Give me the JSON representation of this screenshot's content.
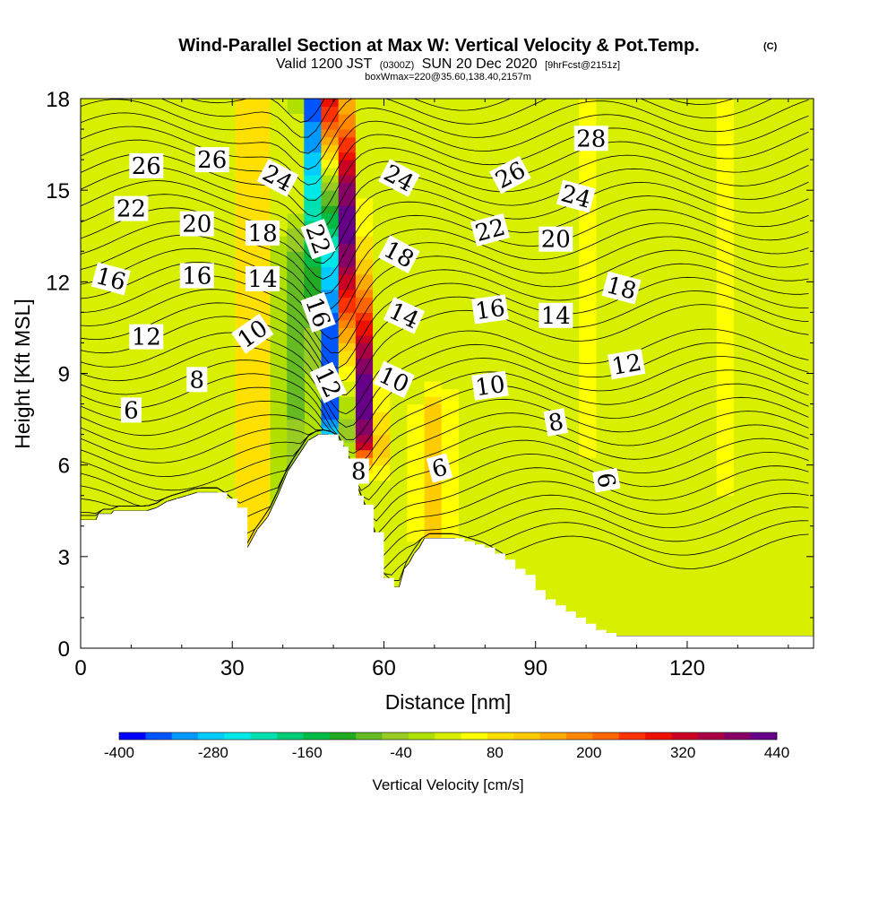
{
  "chart_data": {
    "type": "heatmap",
    "title": "Wind-Parallel Section at Max W: Vertical Velocity & Pot.Temp.",
    "title_mark": "(C)",
    "subtitle": {
      "prefix": "Valid 1200 JST",
      "utc": "(0300Z)",
      "date": "SUN 20 Dec 2020",
      "forecast": "[9hrFcst@2151z]"
    },
    "box_info": "boxWmax=220@35.60,138.40,2157m",
    "xlabel": "Distance [nm]",
    "ylabel": "Height [Kft MSL]",
    "xlim": [
      0,
      145
    ],
    "ylim": [
      0,
      18
    ],
    "x_ticks": [
      0,
      30,
      60,
      90,
      120
    ],
    "y_ticks": [
      0,
      3,
      6,
      9,
      12,
      15,
      18
    ],
    "grid": false,
    "colorbar": {
      "label": "Vertical Velocity [cm/s]",
      "placement": "bottom",
      "tick_labels": [
        "-400",
        "-280",
        "-160",
        "-40",
        "80",
        "200",
        "320",
        "440"
      ],
      "tick_values": [
        -400,
        -280,
        -160,
        -40,
        80,
        200,
        320,
        440
      ],
      "colors": [
        "#0000ff",
        "#0055ff",
        "#0099ff",
        "#00ccff",
        "#00e8e8",
        "#00e0b0",
        "#00cc77",
        "#00bb44",
        "#22aa22",
        "#66bb22",
        "#99cc22",
        "#b0e000",
        "#d8f000",
        "#ffff00",
        "#ffe000",
        "#ffcc00",
        "#ffaa00",
        "#ff8800",
        "#ff6600",
        "#ff3300",
        "#ee1100",
        "#cc0022",
        "#aa0044",
        "#880066",
        "#660088"
      ]
    },
    "terrain_profile_kft": {
      "x": [
        0,
        3,
        3.5,
        6,
        6.5,
        9,
        10,
        11,
        13,
        15,
        17,
        19,
        21,
        23,
        25,
        27,
        29,
        31,
        33,
        35,
        37,
        39,
        41,
        43,
        45,
        47,
        49,
        51,
        52,
        53,
        54,
        55,
        56,
        58,
        60,
        62,
        63,
        64,
        65,
        66,
        67,
        68,
        69,
        70,
        72,
        74,
        76,
        78,
        80,
        82,
        84,
        86,
        88,
        90,
        92,
        94,
        96,
        98,
        100,
        102,
        104,
        106,
        108,
        110,
        112,
        114,
        116,
        118,
        120,
        125,
        130,
        135,
        140,
        145
      ],
      "y": [
        4.2,
        4.2,
        4.4,
        4.4,
        4.5,
        4.5,
        4.5,
        4.5,
        4.5,
        4.6,
        4.8,
        4.9,
        5.0,
        5.1,
        5.1,
        5.1,
        4.9,
        4.6,
        3.3,
        3.9,
        4.3,
        5.0,
        5.8,
        6.3,
        6.8,
        7.0,
        7.0,
        6.8,
        6.6,
        6.0,
        5.5,
        5.0,
        4.7,
        3.8,
        2.3,
        2.0,
        2.0,
        2.6,
        2.8,
        3.1,
        3.3,
        3.6,
        3.6,
        3.6,
        3.6,
        3.6,
        3.5,
        3.4,
        3.3,
        3.1,
        2.9,
        2.6,
        2.4,
        1.9,
        1.6,
        1.4,
        1.2,
        1.0,
        0.8,
        0.6,
        0.5,
        0.4,
        0.4,
        0.4,
        0.4,
        0.4,
        0.4,
        0.4,
        0.4,
        0.4,
        0.4,
        0.4,
        0.4,
        0.4
      ]
    },
    "velocity_features": [
      {
        "x": 49,
        "y_range": [
          7.5,
          18
        ],
        "value": -400
      },
      {
        "x": 55,
        "y_range": [
          7.0,
          18
        ],
        "value": 420
      },
      {
        "x": 34,
        "y_range": [
          4.0,
          18
        ],
        "value": 120
      },
      {
        "x": 42,
        "y_range": [
          4.5,
          13
        ],
        "value": -90
      },
      {
        "x": 70,
        "y_range": [
          4.0,
          7.5
        ],
        "value": 110
      },
      {
        "x": 128,
        "y_range": [
          6.0,
          18
        ],
        "value": 40
      },
      {
        "x": 100,
        "y_range": [
          7.0,
          18
        ],
        "value": 30
      }
    ],
    "contour_labels": [
      {
        "text": "26",
        "x": 13,
        "y": 15.8,
        "angle": 0
      },
      {
        "text": "26",
        "x": 26,
        "y": 16.0,
        "angle": 0
      },
      {
        "text": "24",
        "x": 39,
        "y": 15.4,
        "angle": 28
      },
      {
        "text": "24",
        "x": 63,
        "y": 15.4,
        "angle": 28
      },
      {
        "text": "26",
        "x": 85,
        "y": 15.5,
        "angle": -28
      },
      {
        "text": "28",
        "x": 101,
        "y": 16.7,
        "angle": 0
      },
      {
        "text": "22",
        "x": 10,
        "y": 14.4,
        "angle": 0
      },
      {
        "text": "20",
        "x": 23,
        "y": 13.9,
        "angle": 0
      },
      {
        "text": "18",
        "x": 36,
        "y": 13.6,
        "angle": 0
      },
      {
        "text": "22",
        "x": 47,
        "y": 13.4,
        "angle": 70
      },
      {
        "text": "18",
        "x": 63,
        "y": 12.9,
        "angle": 28
      },
      {
        "text": "22",
        "x": 81,
        "y": 13.7,
        "angle": -15
      },
      {
        "text": "24",
        "x": 98,
        "y": 14.8,
        "angle": 15
      },
      {
        "text": "20",
        "x": 94,
        "y": 13.4,
        "angle": 0
      },
      {
        "text": "16",
        "x": 6,
        "y": 12.1,
        "angle": 15
      },
      {
        "text": "16",
        "x": 23,
        "y": 12.2,
        "angle": 0
      },
      {
        "text": "14",
        "x": 36,
        "y": 12.1,
        "angle": 0
      },
      {
        "text": "16",
        "x": 47,
        "y": 11.0,
        "angle": 70
      },
      {
        "text": "14",
        "x": 64,
        "y": 10.9,
        "angle": 25
      },
      {
        "text": "16",
        "x": 81,
        "y": 11.1,
        "angle": -8
      },
      {
        "text": "14",
        "x": 94,
        "y": 10.9,
        "angle": 0
      },
      {
        "text": "18",
        "x": 107,
        "y": 11.8,
        "angle": 15
      },
      {
        "text": "12",
        "x": 13,
        "y": 10.2,
        "angle": 0
      },
      {
        "text": "10",
        "x": 34,
        "y": 10.3,
        "angle": -35
      },
      {
        "text": "12",
        "x": 49,
        "y": 8.7,
        "angle": 65
      },
      {
        "text": "10",
        "x": 62,
        "y": 8.8,
        "angle": 25
      },
      {
        "text": "10",
        "x": 81,
        "y": 8.6,
        "angle": -8
      },
      {
        "text": "12",
        "x": 108,
        "y": 9.3,
        "angle": -10
      },
      {
        "text": "8",
        "x": 23,
        "y": 8.8,
        "angle": 0
      },
      {
        "text": "6",
        "x": 10,
        "y": 7.8,
        "angle": 0
      },
      {
        "text": "8",
        "x": 94,
        "y": 7.4,
        "angle": -10
      },
      {
        "text": "8",
        "x": 55,
        "y": 5.8,
        "angle": 0
      },
      {
        "text": "6",
        "x": 71,
        "y": 5.9,
        "angle": -15
      },
      {
        "text": "6",
        "x": 104,
        "y": 5.5,
        "angle": 80
      }
    ]
  }
}
